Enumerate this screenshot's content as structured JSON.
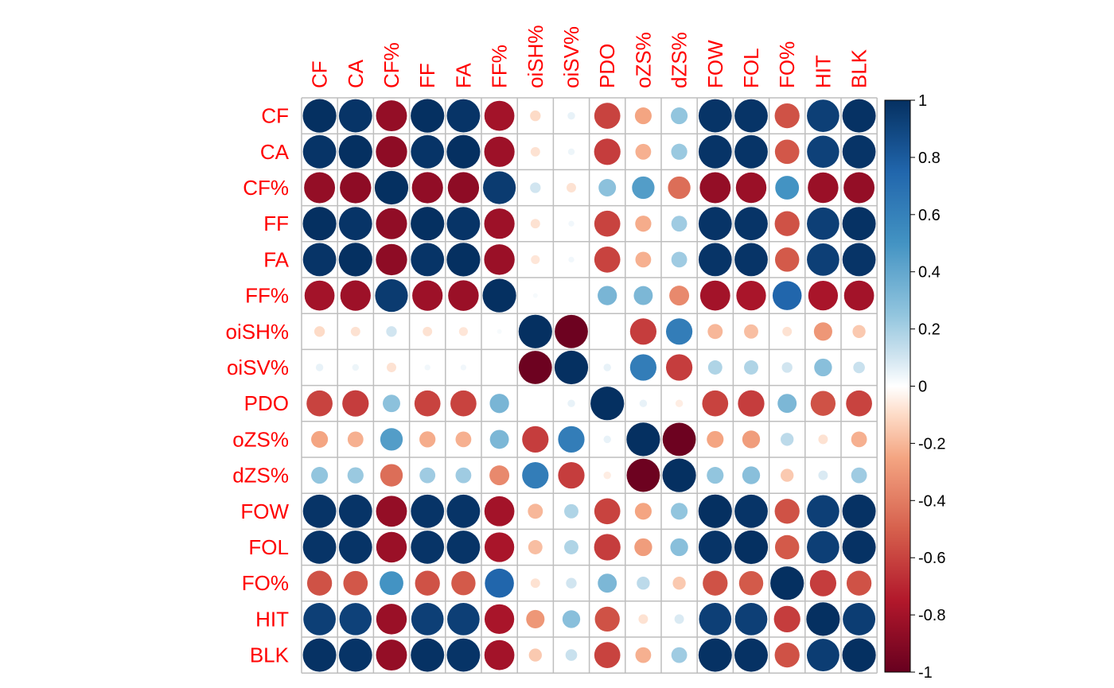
{
  "chart_data": {
    "type": "heatmap",
    "variables": [
      "CF",
      "CA",
      "CF%",
      "FF",
      "FA",
      "FF%",
      "oiSH%",
      "oiSV%",
      "PDO",
      "oZS%",
      "dZS%",
      "FOW",
      "FOL",
      "FO%",
      "HIT",
      "BLK"
    ],
    "matrix": [
      [
        1.0,
        0.98,
        -0.85,
        1.0,
        0.98,
        -0.8,
        -0.1,
        0.05,
        -0.6,
        -0.25,
        0.25,
        0.98,
        0.98,
        -0.55,
        0.93,
        0.99
      ],
      [
        0.98,
        1.0,
        -0.87,
        0.98,
        1.0,
        -0.82,
        -0.08,
        0.04,
        -0.62,
        -0.22,
        0.23,
        0.98,
        0.98,
        -0.53,
        0.92,
        0.98
      ],
      [
        -0.85,
        -0.87,
        1.0,
        -0.86,
        -0.87,
        0.95,
        0.1,
        -0.08,
        0.27,
        0.45,
        -0.45,
        -0.85,
        -0.83,
        0.5,
        -0.83,
        -0.85
      ],
      [
        1.0,
        0.98,
        -0.86,
        1.0,
        0.98,
        -0.82,
        -0.08,
        0.03,
        -0.6,
        -0.23,
        0.22,
        0.98,
        0.98,
        -0.55,
        0.93,
        0.99
      ],
      [
        0.98,
        1.0,
        -0.87,
        0.98,
        1.0,
        -0.83,
        -0.07,
        0.03,
        -0.6,
        -0.22,
        0.22,
        0.98,
        0.98,
        -0.52,
        0.93,
        0.98
      ],
      [
        -0.8,
        -0.82,
        0.95,
        -0.82,
        -0.83,
        1.0,
        0.02,
        0.0,
        0.33,
        0.32,
        -0.35,
        -0.8,
        -0.78,
        0.75,
        -0.78,
        -0.8
      ],
      [
        -0.1,
        -0.08,
        0.1,
        -0.08,
        -0.07,
        0.02,
        1.0,
        -0.98,
        0.0,
        -0.62,
        0.62,
        -0.2,
        -0.18,
        -0.08,
        -0.3,
        -0.15
      ],
      [
        0.05,
        0.04,
        -0.08,
        0.03,
        0.03,
        0.0,
        -0.98,
        1.0,
        0.05,
        0.62,
        -0.62,
        0.18,
        0.18,
        0.1,
        0.28,
        0.12
      ],
      [
        -0.6,
        -0.62,
        0.27,
        -0.6,
        -0.6,
        0.33,
        0.0,
        0.05,
        1.0,
        0.05,
        -0.05,
        -0.6,
        -0.62,
        0.32,
        -0.55,
        -0.6
      ],
      [
        -0.25,
        -0.22,
        0.45,
        -0.23,
        -0.22,
        0.32,
        -0.62,
        0.62,
        0.05,
        1.0,
        -0.98,
        -0.25,
        -0.28,
        0.15,
        -0.08,
        -0.22
      ],
      [
        0.25,
        0.23,
        -0.45,
        0.22,
        0.22,
        -0.35,
        0.62,
        -0.62,
        -0.05,
        -0.98,
        1.0,
        0.25,
        0.28,
        -0.15,
        0.08,
        0.22
      ],
      [
        0.98,
        0.98,
        -0.85,
        0.98,
        0.98,
        -0.8,
        -0.2,
        0.18,
        -0.6,
        -0.25,
        0.25,
        1.0,
        0.98,
        -0.55,
        0.93,
        0.99
      ],
      [
        0.98,
        0.98,
        -0.83,
        0.98,
        0.98,
        -0.78,
        -0.18,
        0.18,
        -0.62,
        -0.28,
        0.28,
        0.98,
        1.0,
        -0.52,
        0.93,
        0.99
      ],
      [
        -0.55,
        -0.53,
        0.5,
        -0.55,
        -0.52,
        0.75,
        -0.08,
        0.1,
        0.32,
        0.15,
        -0.15,
        -0.55,
        -0.52,
        1.0,
        -0.62,
        -0.55
      ],
      [
        0.93,
        0.92,
        -0.83,
        0.93,
        0.93,
        -0.78,
        -0.3,
        0.28,
        -0.55,
        -0.08,
        0.08,
        0.93,
        0.93,
        -0.62,
        1.0,
        0.94
      ],
      [
        0.99,
        0.98,
        -0.85,
        0.99,
        0.98,
        -0.8,
        -0.15,
        0.12,
        -0.6,
        -0.22,
        0.22,
        0.99,
        0.99,
        -0.55,
        0.94,
        1.0
      ]
    ],
    "color_scale": {
      "min": -1,
      "max": 1,
      "ticks": [
        "1",
        "0.8",
        "0.6",
        "0.4",
        "0.2",
        "0",
        "-0.2",
        "-0.4",
        "-0.6",
        "-0.8",
        "-1"
      ],
      "stops": [
        {
          "v": -1.0,
          "color": "#67001f"
        },
        {
          "v": -0.75,
          "color": "#b2182b"
        },
        {
          "v": -0.5,
          "color": "#d6604d"
        },
        {
          "v": -0.25,
          "color": "#f4a582"
        },
        {
          "v": -0.1,
          "color": "#fddbc7"
        },
        {
          "v": 0.0,
          "color": "#ffffff"
        },
        {
          "v": 0.1,
          "color": "#d1e5f0"
        },
        {
          "v": 0.25,
          "color": "#92c5de"
        },
        {
          "v": 0.5,
          "color": "#4393c3"
        },
        {
          "v": 0.75,
          "color": "#2166ac"
        },
        {
          "v": 1.0,
          "color": "#053061"
        }
      ]
    },
    "label_color": "#ff0000",
    "grid_color": "#bebebe",
    "marker": "circle",
    "grid": true,
    "legend": "right"
  }
}
